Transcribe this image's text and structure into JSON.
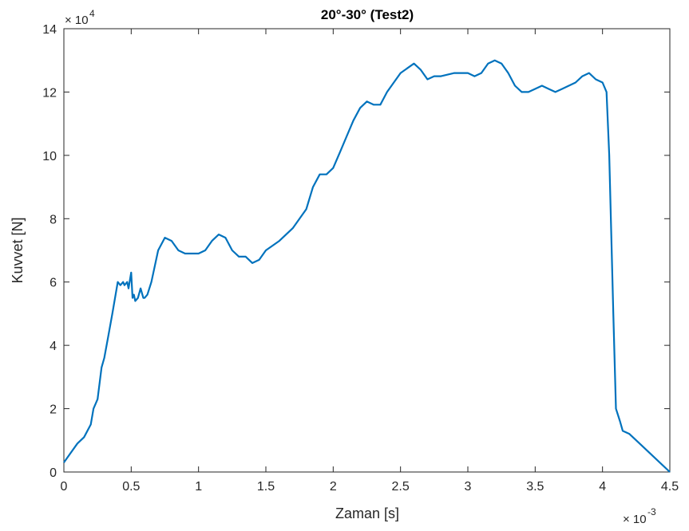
{
  "chart_data": {
    "type": "line",
    "title": "20°-30° (Test2)",
    "xlabel": "Zaman [s]",
    "ylabel": "Kuvvet [N]",
    "x_multiplier": {
      "base": "× 10",
      "exponent": "-3"
    },
    "y_multiplier": {
      "base": "× 10",
      "exponent": "4"
    },
    "xlim": [
      0,
      4.5
    ],
    "ylim": [
      0,
      14
    ],
    "x_ticks": [
      0,
      0.5,
      1,
      1.5,
      2,
      2.5,
      3,
      3.5,
      4,
      4.5
    ],
    "x_tick_labels": [
      "0",
      "0.5",
      "1",
      "1.5",
      "2",
      "2.5",
      "3",
      "3.5",
      "4",
      "4.5"
    ],
    "y_ticks": [
      0,
      2,
      4,
      6,
      8,
      10,
      12,
      14
    ],
    "y_tick_labels": [
      "0",
      "2",
      "4",
      "6",
      "8",
      "10",
      "12",
      "14"
    ],
    "grid": false,
    "line_color": "#0072BD",
    "series": [
      {
        "x": [
          0,
          0.05,
          0.1,
          0.15,
          0.2,
          0.22,
          0.25,
          0.28,
          0.3,
          0.33,
          0.36,
          0.38,
          0.4,
          0.42,
          0.44,
          0.45,
          0.47,
          0.48,
          0.5,
          0.51,
          0.52,
          0.53,
          0.55,
          0.57,
          0.59,
          0.6,
          0.62,
          0.65,
          0.7,
          0.75,
          0.8,
          0.85,
          0.9,
          1.0,
          1.05,
          1.1,
          1.15,
          1.2,
          1.25,
          1.3,
          1.35,
          1.4,
          1.45,
          1.5,
          1.6,
          1.7,
          1.8,
          1.85,
          1.9,
          1.95,
          2.0,
          2.05,
          2.1,
          2.15,
          2.2,
          2.25,
          2.3,
          2.35,
          2.4,
          2.5,
          2.6,
          2.65,
          2.7,
          2.75,
          2.8,
          2.9,
          3.0,
          3.05,
          3.1,
          3.15,
          3.2,
          3.25,
          3.3,
          3.35,
          3.4,
          3.45,
          3.5,
          3.55,
          3.6,
          3.65,
          3.7,
          3.75,
          3.8,
          3.85,
          3.9,
          3.95,
          4.0,
          4.03,
          4.05,
          4.08,
          4.1,
          4.13,
          4.15,
          4.2,
          4.3,
          4.4,
          4.5
        ],
        "y": [
          0.3,
          0.6,
          0.9,
          1.1,
          1.5,
          2.0,
          2.3,
          3.3,
          3.6,
          4.3,
          5.0,
          5.5,
          6.0,
          5.9,
          6.0,
          5.9,
          6.0,
          5.8,
          6.3,
          5.5,
          5.6,
          5.4,
          5.5,
          5.8,
          5.5,
          5.5,
          5.6,
          6.0,
          7.0,
          7.4,
          7.3,
          7.0,
          6.9,
          6.9,
          7.0,
          7.3,
          7.5,
          7.4,
          7.0,
          6.8,
          6.8,
          6.6,
          6.7,
          7.0,
          7.3,
          7.7,
          8.3,
          9.0,
          9.4,
          9.4,
          9.6,
          10.1,
          10.6,
          11.1,
          11.5,
          11.7,
          11.6,
          11.6,
          12.0,
          12.6,
          12.9,
          12.7,
          12.4,
          12.5,
          12.5,
          12.6,
          12.6,
          12.5,
          12.6,
          12.9,
          13.0,
          12.9,
          12.6,
          12.2,
          12.0,
          12.0,
          12.1,
          12.2,
          12.1,
          12.0,
          12.1,
          12.2,
          12.3,
          12.5,
          12.6,
          12.4,
          12.3,
          12.0,
          10.0,
          5.0,
          2.0,
          1.6,
          1.3,
          1.2,
          0.8,
          0.4,
          0.0
        ]
      }
    ]
  }
}
